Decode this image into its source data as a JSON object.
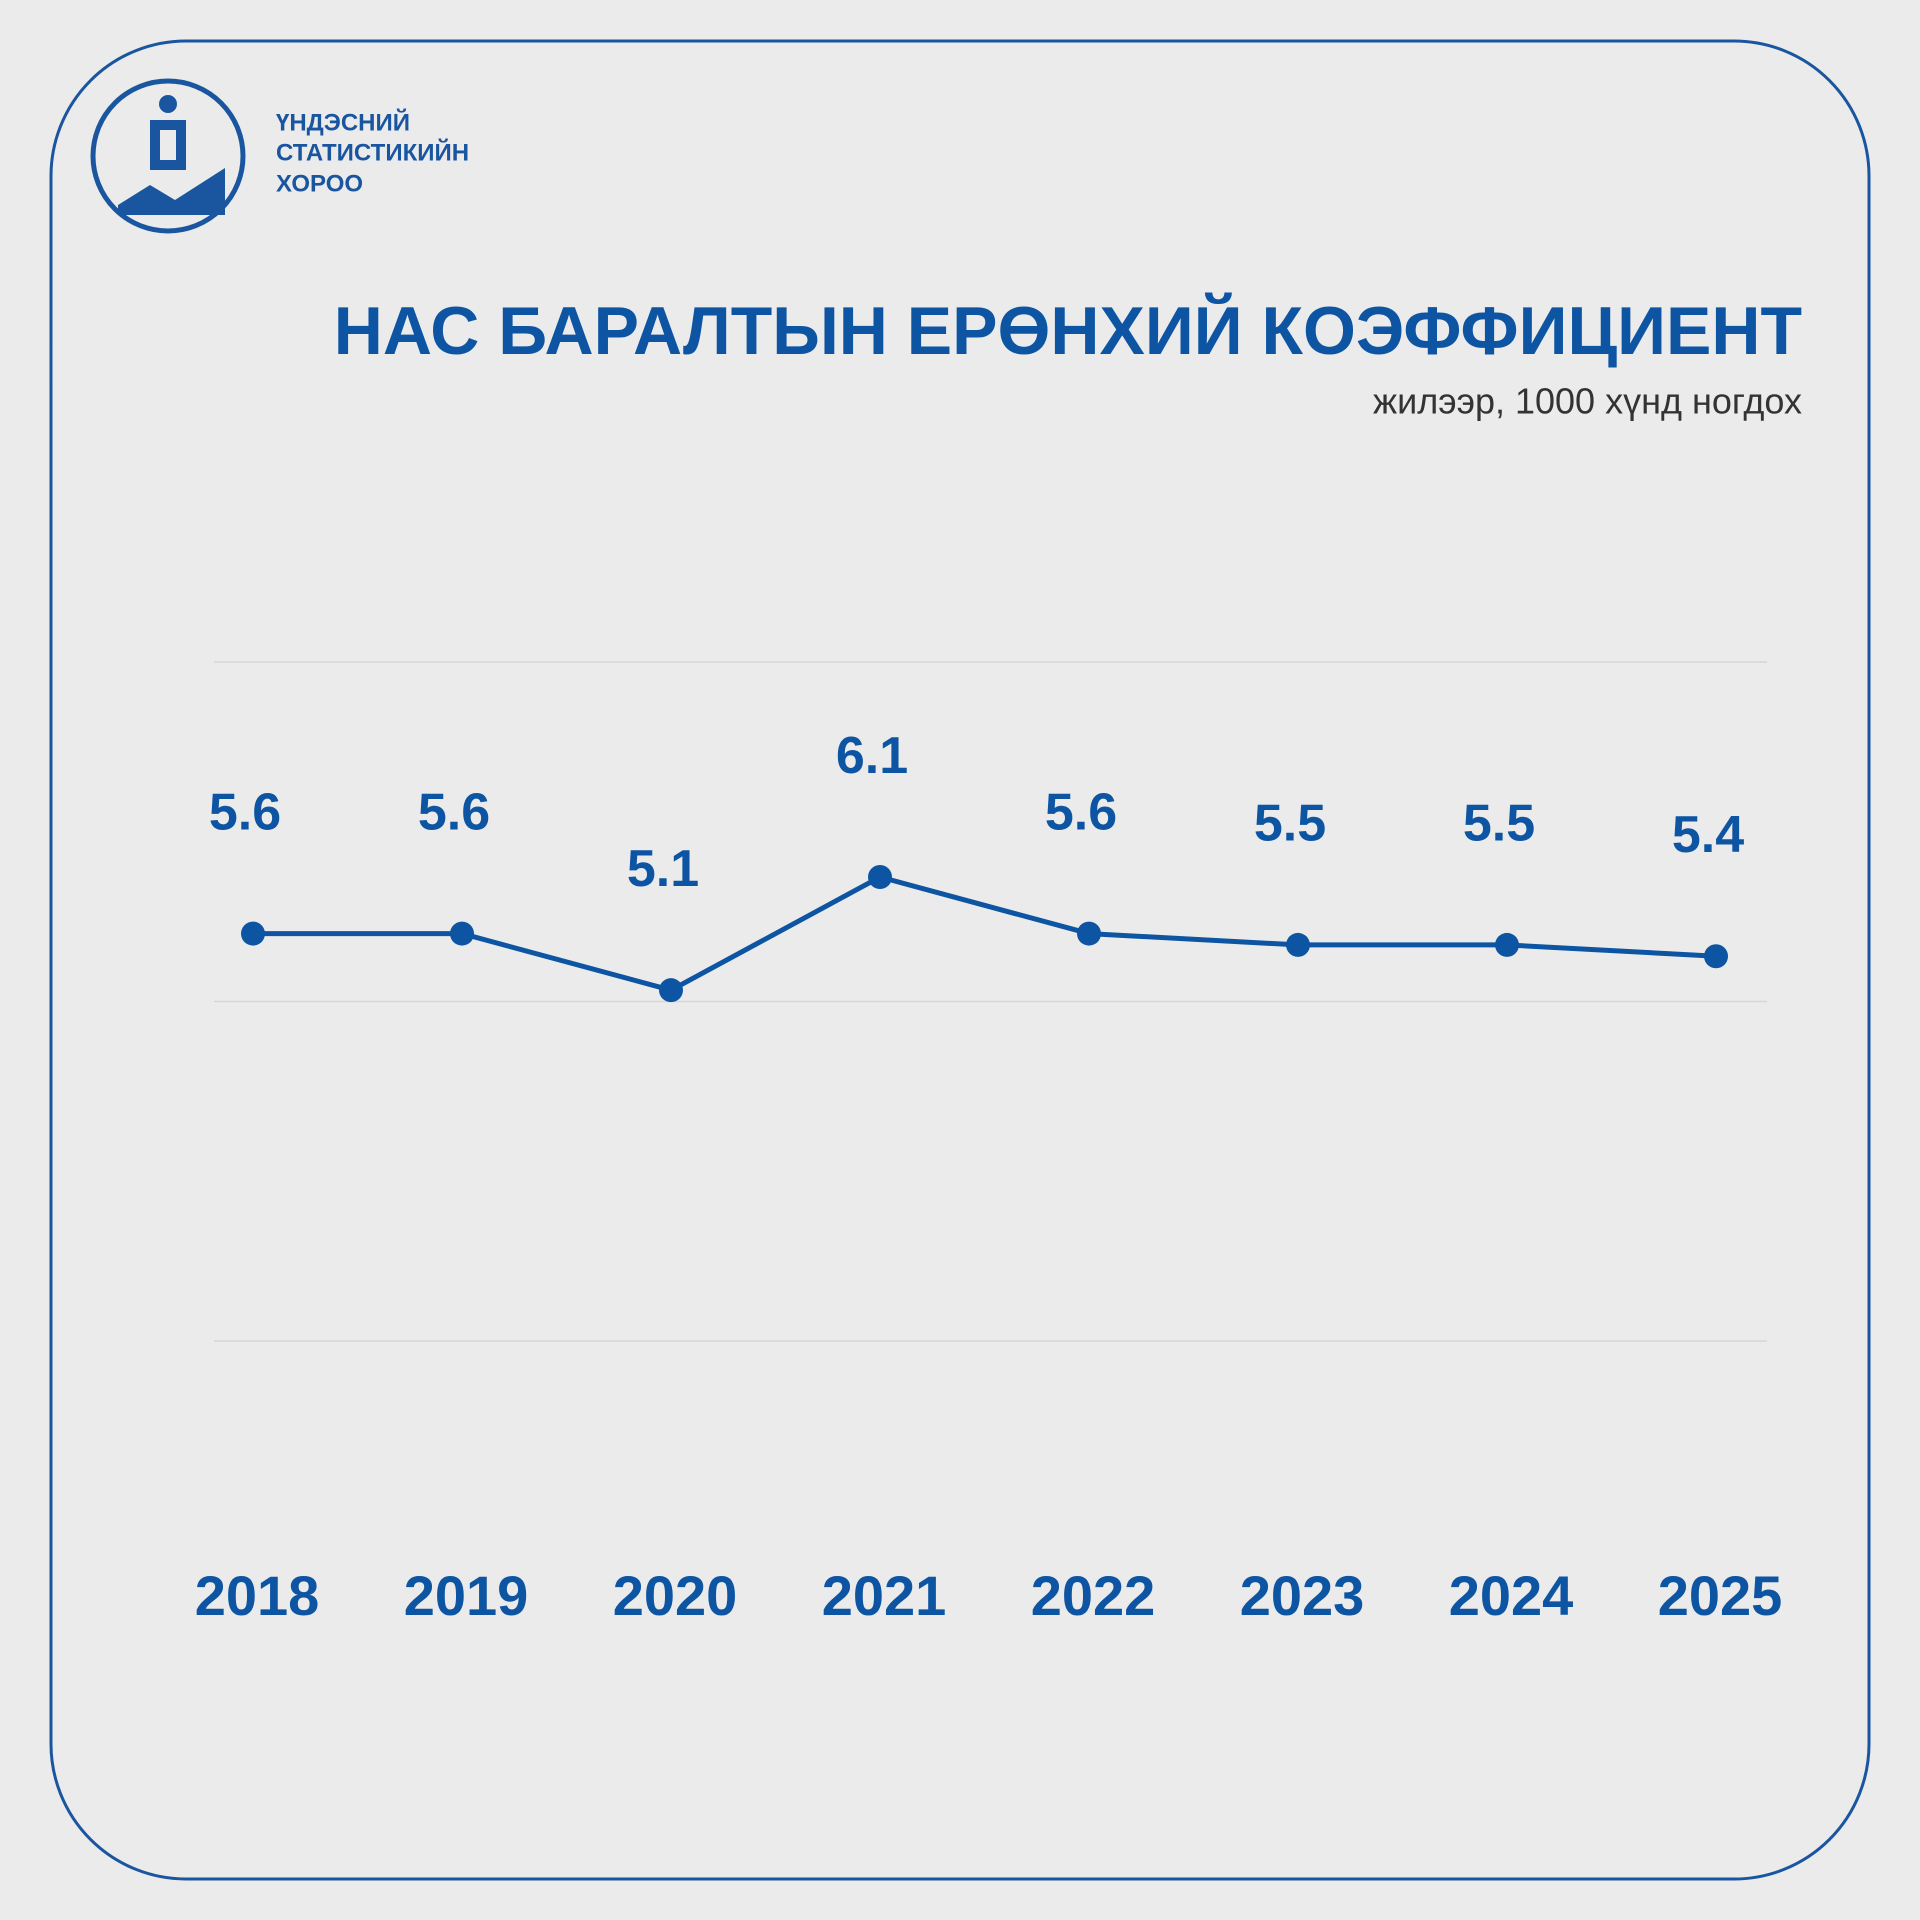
{
  "header": {
    "org_lines": [
      "ҮНДЭСНИЙ",
      "СТАТИСТИКИЙН",
      "ХОРОО"
    ]
  },
  "chart_data": {
    "type": "line",
    "title": "НАС БАРАЛТЫН ЕРӨНХИЙ КОЭФФИЦИЕНТ",
    "subtitle": "жилээр, 1000 хүнд ногдох",
    "categories": [
      "2018",
      "2019",
      "2020",
      "2021",
      "2022",
      "2023",
      "2024",
      "2025"
    ],
    "values": [
      5.6,
      5.6,
      5.1,
      6.1,
      5.6,
      5.5,
      5.5,
      5.4
    ],
    "color": "#0d55a3",
    "ylim": [
      2,
      8
    ],
    "yticks": [
      2,
      5,
      8
    ],
    "grid": true
  }
}
